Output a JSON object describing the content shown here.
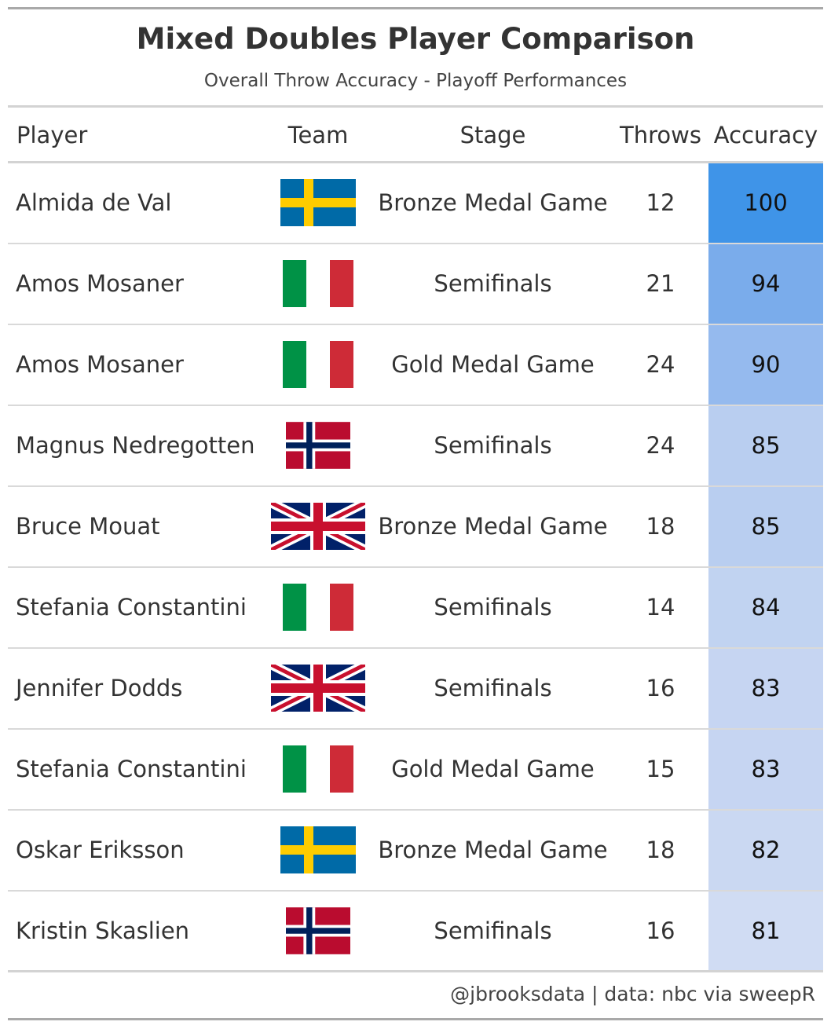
{
  "header": {
    "title": "Mixed Doubles Player Comparison",
    "subtitle": "Overall Throw Accuracy - Playoff Performances"
  },
  "columns": [
    "Player",
    "Team",
    "Stage",
    "Throws",
    "Accuracy"
  ],
  "rows": [
    {
      "player": "Almida de Val",
      "team": "sweden-flag-icon",
      "stage": "Bronze Medal Game",
      "throws": "12",
      "accuracy": "100",
      "fill": "#3f94e8"
    },
    {
      "player": "Amos Mosaner",
      "team": "italy-flag-icon",
      "stage": "Semifinals",
      "throws": "21",
      "accuracy": "94",
      "fill": "#7aaceb"
    },
    {
      "player": "Amos Mosaner",
      "team": "italy-flag-icon",
      "stage": "Gold Medal Game",
      "throws": "24",
      "accuracy": "90",
      "fill": "#95baee"
    },
    {
      "player": "Magnus Nedregotten",
      "team": "norway-flag-icon",
      "stage": "Semifinals",
      "throws": "24",
      "accuracy": "85",
      "fill": "#b9cef0"
    },
    {
      "player": "Bruce Mouat",
      "team": "uk-flag-icon",
      "stage": "Bronze Medal Game",
      "throws": "18",
      "accuracy": "85",
      "fill": "#b9cef0"
    },
    {
      "player": "Stefania Constantini",
      "team": "italy-flag-icon",
      "stage": "Semifinals",
      "throws": "14",
      "accuracy": "84",
      "fill": "#c1d3f1"
    },
    {
      "player": "Jennifer Dodds",
      "team": "uk-flag-icon",
      "stage": "Semifinals",
      "throws": "16",
      "accuracy": "83",
      "fill": "#c6d5f2"
    },
    {
      "player": "Stefania Constantini",
      "team": "italy-flag-icon",
      "stage": "Gold Medal Game",
      "throws": "15",
      "accuracy": "83",
      "fill": "#c6d5f2"
    },
    {
      "player": "Oskar Eriksson",
      "team": "sweden-flag-icon",
      "stage": "Bronze Medal Game",
      "throws": "18",
      "accuracy": "82",
      "fill": "#cad8f2"
    },
    {
      "player": "Kristin Skaslien",
      "team": "norway-flag-icon",
      "stage": "Semifinals",
      "throws": "16",
      "accuracy": "81",
      "fill": "#d0dcf3"
    }
  ],
  "footer": "@jbrooksdata | data: nbc via sweepR",
  "chart_data": {
    "type": "table",
    "title": "Mixed Doubles Player Comparison",
    "subtitle": "Overall Throw Accuracy - Playoff Performances",
    "columns": [
      "Player",
      "Team",
      "Stage",
      "Throws",
      "Accuracy"
    ],
    "values": [
      [
        "Almida de Val",
        "Sweden",
        "Bronze Medal Game",
        12,
        100
      ],
      [
        "Amos Mosaner",
        "Italy",
        "Semifinals",
        21,
        94
      ],
      [
        "Amos Mosaner",
        "Italy",
        "Gold Medal Game",
        24,
        90
      ],
      [
        "Magnus Nedregotten",
        "Norway",
        "Semifinals",
        24,
        85
      ],
      [
        "Bruce Mouat",
        "Great Britain",
        "Bronze Medal Game",
        18,
        85
      ],
      [
        "Stefania Constantini",
        "Italy",
        "Semifinals",
        14,
        84
      ],
      [
        "Jennifer Dodds",
        "Great Britain",
        "Semifinals",
        16,
        83
      ],
      [
        "Stefania Constantini",
        "Italy",
        "Gold Medal Game",
        15,
        83
      ],
      [
        "Oskar Eriksson",
        "Sweden",
        "Bronze Medal Game",
        18,
        82
      ],
      [
        "Kristin Skaslien",
        "Norway",
        "Semifinals",
        16,
        81
      ]
    ]
  }
}
